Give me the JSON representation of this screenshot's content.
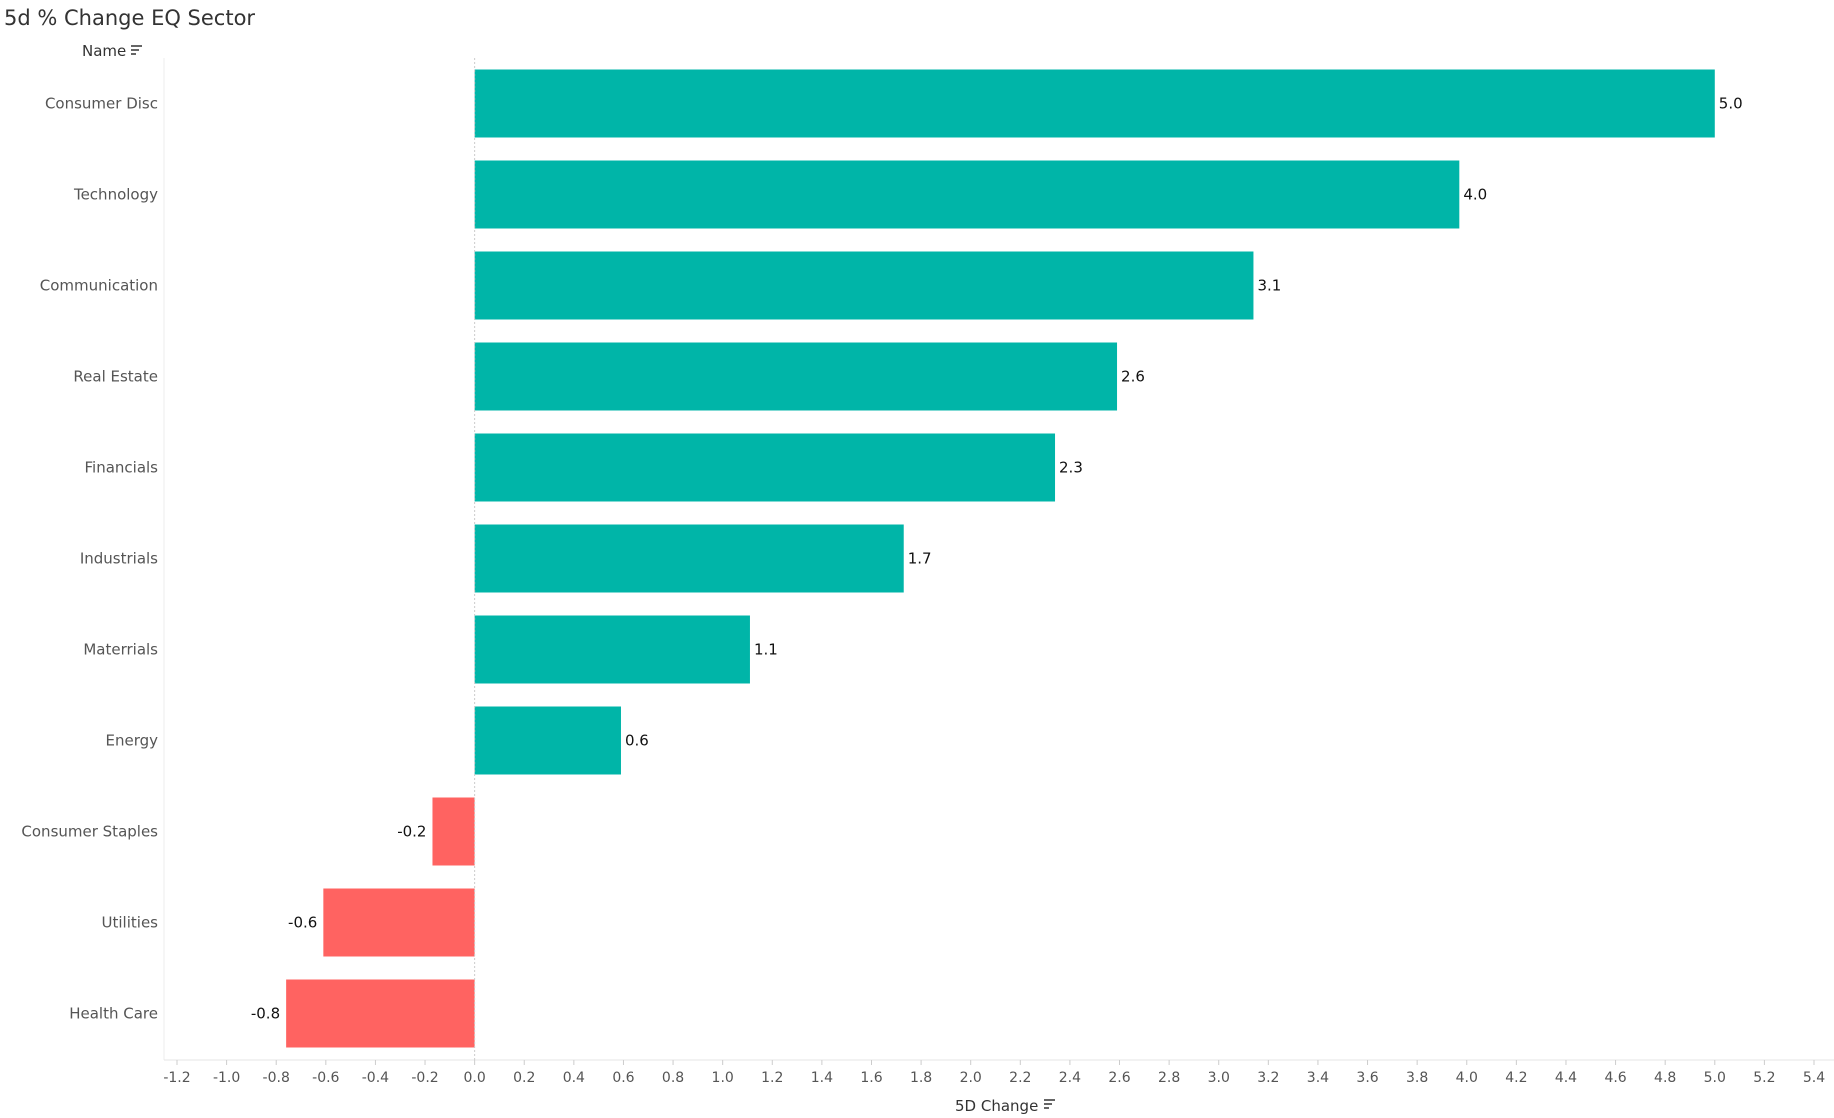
{
  "chart_data": {
    "type": "bar",
    "orientation": "horizontal",
    "title": "5d % Change EQ Sector",
    "category_header": "Name",
    "xlabel": "5D Change",
    "ylabel": "",
    "categories": [
      "Consumer Disc",
      "Technology",
      "Communication",
      "Real Estate",
      "Financials",
      "Industrials",
      "Materrials",
      "Energy",
      "Consumer Staples",
      "Utilities",
      "Health Care"
    ],
    "values": [
      5.0,
      3.97,
      3.14,
      2.59,
      2.34,
      1.73,
      1.11,
      0.59,
      -0.17,
      -0.61,
      -0.76
    ],
    "data_labels": [
      "5.0",
      "4.0",
      "3.1",
      "2.6",
      "2.3",
      "1.7",
      "1.1",
      "0.6",
      "-0.2",
      "-0.6",
      "-0.8"
    ],
    "xlim": [
      -1.2,
      5.4
    ],
    "xticks": [
      -1.2,
      -1.0,
      -0.8,
      -0.6,
      -0.4,
      -0.2,
      0.0,
      0.2,
      0.4,
      0.6,
      0.8,
      1.0,
      1.2,
      1.4,
      1.6,
      1.8,
      2.0,
      2.2,
      2.4,
      2.6,
      2.8,
      3.0,
      3.2,
      3.4,
      3.6,
      3.8,
      4.0,
      4.2,
      4.4,
      4.6,
      4.8,
      5.0,
      5.2,
      5.4
    ],
    "xtick_labels": [
      "-1.2",
      "-1.0",
      "-0.8",
      "-0.6",
      "-0.4",
      "-0.2",
      "0.0",
      "0.2",
      "0.4",
      "0.6",
      "0.8",
      "1.0",
      "1.2",
      "1.4",
      "1.6",
      "1.8",
      "2.0",
      "2.2",
      "2.4",
      "2.6",
      "2.8",
      "3.0",
      "3.2",
      "3.4",
      "3.6",
      "3.8",
      "4.0",
      "4.2",
      "4.4",
      "4.6",
      "4.8",
      "5.0",
      "5.2",
      "5.4"
    ],
    "grid": false,
    "legend": "none",
    "colors": {
      "positive": "#00b5a8",
      "negative": "#ff6361"
    }
  }
}
